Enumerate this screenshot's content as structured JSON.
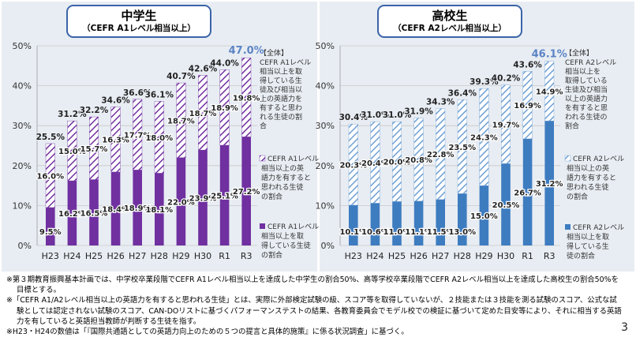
{
  "page_number": "3",
  "colors": {
    "jhs_solid": "#7030a0",
    "jhs_hatch": "#7030a0",
    "hs_solid": "#3e7cc0",
    "hs_hatch": "#6f9fd3",
    "panel_bg": "#e8edf3",
    "title_border": "#3a64a8",
    "total_text": "#5b84c4"
  },
  "chart_data": [
    {
      "type": "bar",
      "stacked": true,
      "title": "中学生",
      "subtitle": "（CEFR A1レベル相当以上）",
      "categories": [
        "H23",
        "H24",
        "H25",
        "H26",
        "H27",
        "H28",
        "H29",
        "H30",
        "R1",
        "R3"
      ],
      "ylim": [
        0,
        50
      ],
      "yticks": [
        "0%",
        "10%",
        "20%",
        "30%",
        "40%",
        "50%"
      ],
      "series": [
        {
          "name": "CEFR A1レベル相当以上を取得している生徒の割合",
          "fill": "solid",
          "values": [
            9.5,
            16.2,
            16.5,
            18.4,
            18.9,
            18.1,
            22.0,
            23.9,
            25.1,
            27.2
          ],
          "labels": [
            "9.5%",
            "16.2%",
            "16.5%",
            "18.4%",
            "18.9%",
            "18.1%",
            "22.0%",
            "23.9%",
            "25.1%",
            "27.2%"
          ]
        },
        {
          "name": "CEFR A1レベル相当以上の英語力を有すると思われる生徒の割合",
          "fill": "hatch",
          "values": [
            16.0,
            15.0,
            15.7,
            16.3,
            17.7,
            18.0,
            18.7,
            18.7,
            18.9,
            19.8
          ],
          "labels": [
            "16.0%",
            "15.0%",
            "15.7%",
            "16.3%",
            "17.7%",
            "18.0%",
            "18.7%",
            "18.7%",
            "18.9%",
            "19.8%"
          ]
        }
      ],
      "totals": [
        25.5,
        31.2,
        32.2,
        34.6,
        36.6,
        36.1,
        40.7,
        42.6,
        44.0,
        47.0
      ],
      "total_labels": [
        "25.5%",
        "31.2%",
        "32.2%",
        "34.6%",
        "36.6%",
        "36.1%",
        "40.7%",
        "42.6%",
        "44.0%",
        "47.0%"
      ],
      "legend": {
        "total_heading": "【全体】",
        "total_lines": [
          "CEFR A1レベル",
          "相当以上を取",
          "得している生",
          "徒及び相当以",
          "上の英語力を",
          "有すると思わ",
          "れる生徒の割",
          "合"
        ],
        "hatch_lines": [
          "CEFR A1レベル",
          "相当以上の英",
          "語力を有すると",
          "思われる生徒",
          "の割合"
        ],
        "solid_lines": [
          "CEFR A1レベル",
          "相当以上を取",
          "得している生徒",
          "の割合"
        ]
      }
    },
    {
      "type": "bar",
      "stacked": true,
      "title": "高校生",
      "subtitle": "（CEFR A2レベル相当以上）",
      "categories": [
        "H23",
        "H24",
        "H25",
        "H26",
        "H27",
        "H28",
        "H29",
        "H30",
        "R1",
        "R3"
      ],
      "ylim": [
        0,
        50
      ],
      "yticks": [
        "0%",
        "10%",
        "20%",
        "30%",
        "40%",
        "50%"
      ],
      "series": [
        {
          "name": "CEFR A2レベル相当以上を取得している生徒の割合",
          "fill": "solid",
          "values": [
            10.1,
            10.6,
            11.0,
            11.1,
            11.5,
            13.0,
            15.0,
            20.5,
            26.7,
            31.2
          ],
          "labels": [
            "10.1%",
            "10.6%",
            "11.0%",
            "11.1%",
            "11.5%",
            "13.0%",
            "15.0%",
            "20.5%",
            "26.7%",
            "31.2%"
          ]
        },
        {
          "name": "CEFR A2レベル相当以上の英語力を有すると思われる生徒の割合",
          "fill": "hatch",
          "values": [
            20.3,
            20.4,
            20.0,
            20.8,
            22.8,
            23.5,
            24.3,
            19.7,
            16.9,
            14.9
          ],
          "labels": [
            "20.3%",
            "20.4%",
            "20.0%",
            "20.8%",
            "22.8%",
            "23.5%",
            "24.3%",
            "19.7%",
            "16.9%",
            "14.9%"
          ]
        }
      ],
      "totals": [
        30.4,
        31.0,
        31.0,
        31.9,
        34.3,
        36.4,
        39.3,
        40.2,
        43.6,
        46.1
      ],
      "total_labels": [
        "30.4%",
        "31.0%",
        "31.0%",
        "31.9%",
        "34.3%",
        "36.4%",
        "39.3%",
        "40.2%",
        "43.6%",
        "46.1%"
      ],
      "legend": {
        "total_heading": "【全体】",
        "total_lines": [
          "CEFR A2レベル",
          "相当以上を",
          "取得している",
          "生徒及び相当",
          "以上の英語力",
          "を有すると思",
          "われる生徒の",
          "割合"
        ],
        "hatch_lines": [
          "CEFR A2レベル",
          "相当以上の英",
          "語力を有すると",
          "思われる生徒",
          "の割合"
        ],
        "solid_lines": [
          "CEFR A2レベル",
          "相当以上を取",
          "得している生",
          "徒の割合"
        ]
      }
    }
  ],
  "notes": [
    "※第３期教育振興基本計画では、中学校卒業段階でCEFR A1レベル相当以上を達成した中学生の割合50%、高等学校卒業段階でCEFR A2レベル相当以上を達成した高校生の割合50%を目標とする。",
    "※「CEFR A1/A2レベル相当以上の英語力を有すると思われる生徒」とは、実際に外部検定試験の級、スコア等を取得していないが、２技能または３技能を測る試験のスコア、公式な試験としては認定されない試験のスコア、CAN-DOリストに基づくパフォーマンステストの結果、各教育委員会でモデル校での検証に基づいて定めた目安等により、それに相当する英語力を有していると英語担当教師が判断する生徒を指す。",
    "※H23・H24の数値は「『国際共通語としての英語力向上のための５つの提言と具体的施策』に係る状況調査」に基づく。"
  ]
}
